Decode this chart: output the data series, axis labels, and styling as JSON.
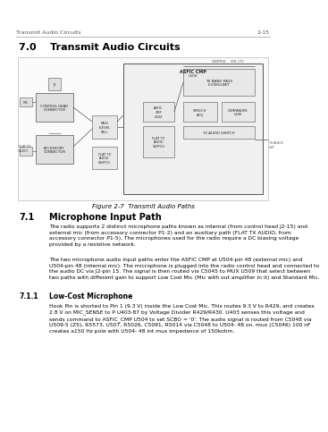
{
  "header_left": "Transmit Audio Circuits",
  "header_right": "2-15",
  "section_title": "7.0    Transmit Audio Circuits",
  "figure_caption": "Figure 2-7  Transmit Audio Paths",
  "section_71_num": "7.1",
  "section_71_title": "Microphone Input Path",
  "section_71_body1": "The radio supports 2 distinct microphone paths known as internal (from control head J2-15) and\nexternal mic (from accessory connector P1-2) and an auxiliary path (FLAT TX AUDIO, from\naccessory connector P1-5). The microphones used for the radio require a DC biasing voltage\nprovided by a resistive network.",
  "section_71_body2": "The two microphone audio input paths enter the ASFIC CMP at U504-pin 48 (external mic) and\nU504-pin 48 (internal mic). The microphone is plugged into the radio control head and connected to\nthe audio DC via J2-pin 15. The signal is then routed via C5045 to MUX U509 that select between\ntwo paths with different gain to support Low Cost Mic (Mic with out amplifier in it) and Standard Mic.",
  "section_711_num": "7.1.1",
  "section_711_title": "Low-Cost Microphone",
  "section_711_body": "Hook Pin is shorted to Pin 1 (9.3 V) inside the Low Cost Mic. This routes 9.3 V to R429, and creates\n2.8 V on MIC_SENSE to P U403-87 by Voltage Divider R429/R430. U403 senses this voltage and\nsends command to ASFIC_CMP U504 to set SCBO = '0'. The audio signal is routed from C5048 via\nU509-5 (Z5), R5573, U507, R5026, C5091, R5014 via C5048 to U504- 48 on. mux (C5046) 100 nF\ncreates a150 Hz pole with U504- 48 int mux impedance of 150kohm.",
  "bg_color": "#ffffff",
  "text_color": "#000000",
  "header_color": "#555555",
  "line_color": "#999999",
  "diagram_line_color": "#555555",
  "diagram_box_fill": "#eeeeee",
  "diagram_outer_fill": "#f5f5f5"
}
